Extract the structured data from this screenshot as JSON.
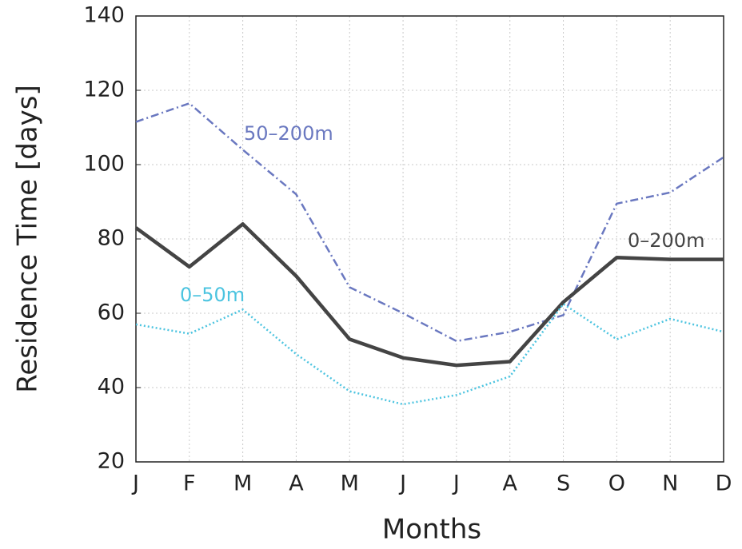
{
  "chart_data": {
    "type": "line",
    "x_label": "Months",
    "y_label": "Residence Time [days]",
    "categories": [
      "J",
      "F",
      "M",
      "A",
      "M",
      "J",
      "J",
      "A",
      "S",
      "O",
      "N",
      "D"
    ],
    "series": [
      {
        "name": "50–200m",
        "color": "#6a78c0",
        "style": "dashdot",
        "values": [
          111.5,
          116.5,
          104,
          92,
          67,
          60,
          52.5,
          55,
          59.5,
          89.5,
          92.5,
          102
        ]
      },
      {
        "name": "0–200m",
        "color": "#444444",
        "style": "solid",
        "values": [
          83,
          72.5,
          84,
          70,
          53,
          48,
          46,
          47,
          63,
          75,
          74.5,
          74.5
        ]
      },
      {
        "name": "0–50m",
        "color": "#4cc4e0",
        "style": "dotted",
        "values": [
          57,
          54.5,
          61,
          49,
          39,
          35.5,
          38,
          43,
          62.5,
          53,
          58.5,
          55
        ]
      }
    ],
    "ylim": [
      20,
      140
    ],
    "yticks": [
      20,
      40,
      60,
      80,
      100,
      120,
      140
    ],
    "grid": true
  }
}
